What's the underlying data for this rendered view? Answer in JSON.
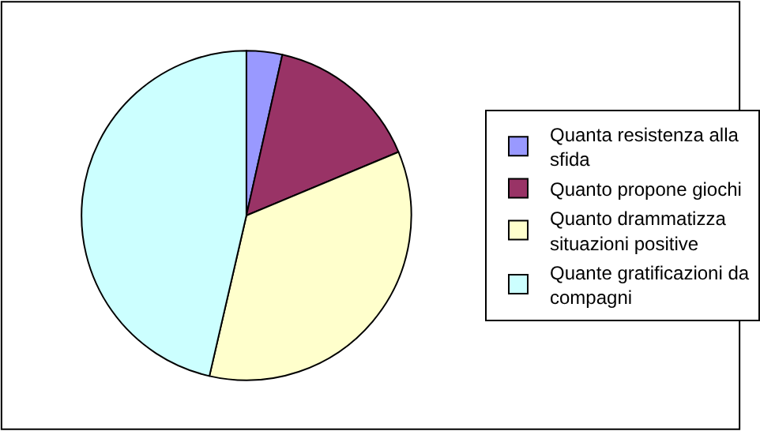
{
  "chart_data": {
    "type": "pie",
    "categories": [
      "Quanta resistenza alla sfida",
      "Quanto propone giochi",
      "Quanto drammatizza situazioni positive",
      "Quante gratificazioni da compagni"
    ],
    "values": [
      3.5,
      15.2,
      34.9,
      46.4
    ],
    "colors": [
      "#9999ff",
      "#993366",
      "#ffffcc",
      "#ccffff"
    ],
    "legend": "right"
  }
}
